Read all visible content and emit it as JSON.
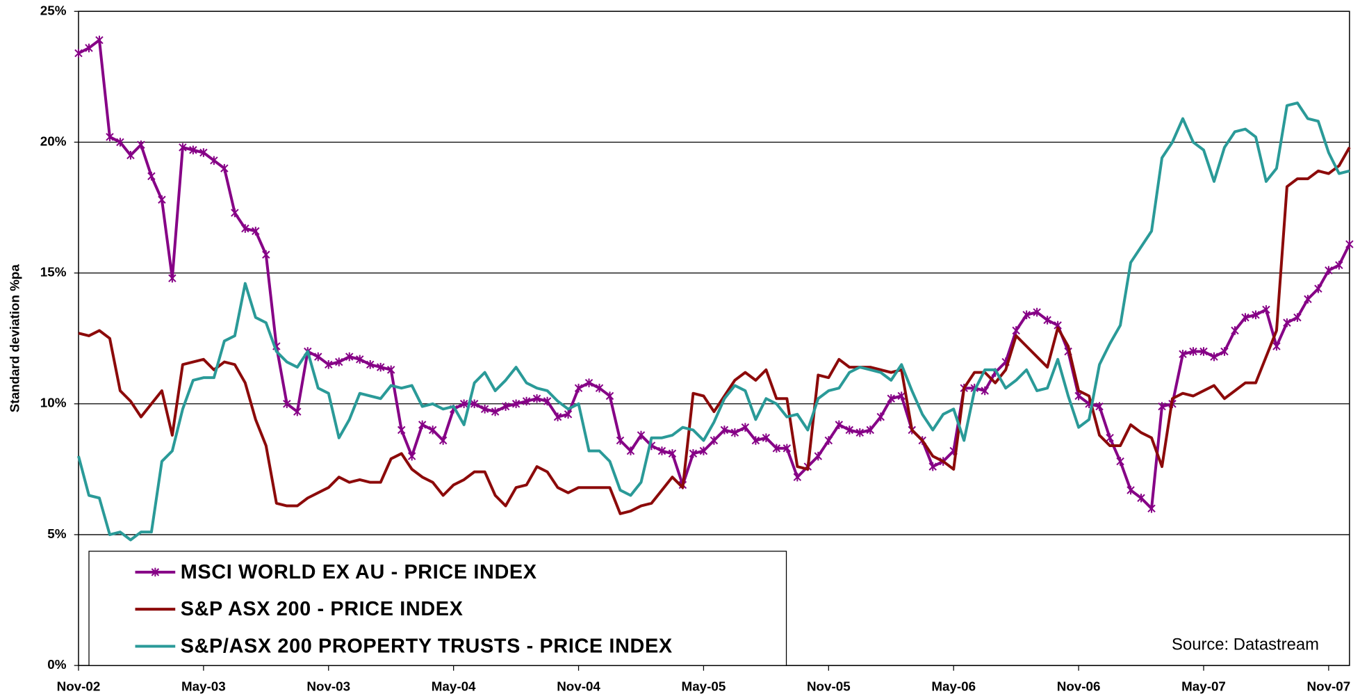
{
  "chart_data": {
    "type": "line",
    "y_label": "Standard deviation %pa",
    "source": "Source: Datastream",
    "ylim": [
      0,
      25
    ],
    "yticks": [
      {
        "value": 0,
        "label": "0%"
      },
      {
        "value": 5,
        "label": "5%"
      },
      {
        "value": 10,
        "label": "10%"
      },
      {
        "value": 15,
        "label": "15%"
      },
      {
        "value": 20,
        "label": "20%"
      },
      {
        "value": 25,
        "label": "25%"
      }
    ],
    "grid": true,
    "legend": "bottom-left",
    "categories": [
      "Nov-02",
      null,
      null,
      null,
      null,
      null,
      null,
      null,
      null,
      null,
      null,
      null,
      "May-03",
      null,
      null,
      null,
      null,
      null,
      null,
      null,
      null,
      null,
      null,
      null,
      "Nov-03",
      null,
      null,
      null,
      null,
      null,
      null,
      null,
      null,
      null,
      null,
      null,
      "May-04",
      null,
      null,
      null,
      null,
      null,
      null,
      null,
      null,
      null,
      null,
      null,
      "Nov-04",
      null,
      null,
      null,
      null,
      null,
      null,
      null,
      null,
      null,
      null,
      null,
      "May-05",
      null,
      null,
      null,
      null,
      null,
      null,
      null,
      null,
      null,
      null,
      null,
      "Nov-05",
      null,
      null,
      null,
      null,
      null,
      null,
      null,
      null,
      null,
      null,
      null,
      "May-06",
      null,
      null,
      null,
      null,
      null,
      null,
      null,
      null,
      null,
      null,
      null,
      "Nov-06",
      null,
      null,
      null,
      null,
      null,
      null,
      null,
      null,
      null,
      null,
      null,
      "May-07",
      null,
      null,
      null,
      null,
      null,
      null,
      null,
      null,
      null,
      null,
      null,
      "Nov-07",
      null,
      null
    ],
    "series": [
      {
        "name": "MSCI WORLD EX AU - PRICE INDEX",
        "color": "#860086",
        "marker": "asterisk",
        "values": [
          23.4,
          23.6,
          23.9,
          20.2,
          20.0,
          19.5,
          19.9,
          18.7,
          17.8,
          14.8,
          19.8,
          19.7,
          19.6,
          19.3,
          19.0,
          17.3,
          16.7,
          16.6,
          15.7,
          12.2,
          10.0,
          9.7,
          12.0,
          11.8,
          11.5,
          11.6,
          11.8,
          11.7,
          11.5,
          11.4,
          11.3,
          9.0,
          8.0,
          9.2,
          9.0,
          8.6,
          9.8,
          10.0,
          10.0,
          9.8,
          9.7,
          9.9,
          10.0,
          10.1,
          10.2,
          10.1,
          9.5,
          9.6,
          10.6,
          10.8,
          10.6,
          10.3,
          8.6,
          8.2,
          8.8,
          8.4,
          8.2,
          8.1,
          6.9,
          8.1,
          8.2,
          8.6,
          9.0,
          8.9,
          9.1,
          8.6,
          8.7,
          8.3,
          8.3,
          7.2,
          7.6,
          8.0,
          8.6,
          9.2,
          9.0,
          8.9,
          9.0,
          9.5,
          10.2,
          10.3,
          9.0,
          8.6,
          7.6,
          7.8,
          8.2,
          10.6,
          10.6,
          10.5,
          11.2,
          11.6,
          12.8,
          13.4,
          13.5,
          13.2,
          13.0,
          12.0,
          10.3,
          10.0,
          9.9,
          8.7,
          7.8,
          6.7,
          6.4,
          6.0,
          9.9,
          10.0,
          11.9,
          12.0,
          12.0,
          11.8,
          12.0,
          12.8,
          13.3,
          13.4,
          13.6,
          12.2,
          13.1,
          13.3,
          14.0,
          14.4,
          15.1,
          15.3,
          16.1
        ]
      },
      {
        "name": "S&P ASX 200 - PRICE INDEX",
        "color": "#8c0a0a",
        "values": [
          12.7,
          12.6,
          12.8,
          12.5,
          10.5,
          10.1,
          9.5,
          10.0,
          10.5,
          8.8,
          11.5,
          11.6,
          11.7,
          11.3,
          11.6,
          11.5,
          10.8,
          9.4,
          8.4,
          6.2,
          6.1,
          6.1,
          6.4,
          6.6,
          6.8,
          7.2,
          7.0,
          7.1,
          7.0,
          7.0,
          7.9,
          8.1,
          7.5,
          7.2,
          7.0,
          6.5,
          6.9,
          7.1,
          7.4,
          7.4,
          6.5,
          6.1,
          6.8,
          6.9,
          7.6,
          7.4,
          6.8,
          6.6,
          6.8,
          6.8,
          6.8,
          6.8,
          5.8,
          5.9,
          6.1,
          6.2,
          6.7,
          7.2,
          6.8,
          10.4,
          10.3,
          9.7,
          10.3,
          10.9,
          11.2,
          10.9,
          11.3,
          10.2,
          10.2,
          7.6,
          7.5,
          11.1,
          11.0,
          11.7,
          11.4,
          11.4,
          11.4,
          11.3,
          11.2,
          11.3,
          9.0,
          8.6,
          8.0,
          7.8,
          7.5,
          10.6,
          11.2,
          11.2,
          10.8,
          11.3,
          12.6,
          12.2,
          11.8,
          11.4,
          12.9,
          12.2,
          10.5,
          10.3,
          8.8,
          8.4,
          8.4,
          9.2,
          8.9,
          8.7,
          7.6,
          10.2,
          10.4,
          10.3,
          10.5,
          10.7,
          10.2,
          10.5,
          10.8,
          10.8,
          11.8,
          12.8,
          18.3,
          18.6,
          18.6,
          18.9,
          18.8,
          19.1,
          19.8
        ]
      },
      {
        "name": "S&P/ASX 200 PROPERTY TRUSTS - PRICE INDEX",
        "color": "#2a9a98",
        "values": [
          8.0,
          6.5,
          6.4,
          5.0,
          5.1,
          4.8,
          5.1,
          5.1,
          7.8,
          8.2,
          9.8,
          10.9,
          11.0,
          11.0,
          12.4,
          12.6,
          14.6,
          13.3,
          13.1,
          12.0,
          11.6,
          11.4,
          12.0,
          10.6,
          10.4,
          8.7,
          9.4,
          10.4,
          10.3,
          10.2,
          10.7,
          10.6,
          10.7,
          9.9,
          10.0,
          9.8,
          9.9,
          9.2,
          10.8,
          11.2,
          10.5,
          10.9,
          11.4,
          10.8,
          10.6,
          10.5,
          10.1,
          9.8,
          10.0,
          8.2,
          8.2,
          7.8,
          6.7,
          6.5,
          7.0,
          8.7,
          8.7,
          8.8,
          9.1,
          9.0,
          8.6,
          9.3,
          10.2,
          10.7,
          10.5,
          9.4,
          10.2,
          10.0,
          9.5,
          9.6,
          9.0,
          10.2,
          10.5,
          10.6,
          11.2,
          11.4,
          11.3,
          11.2,
          10.9,
          11.5,
          10.5,
          9.6,
          9.0,
          9.6,
          9.8,
          8.6,
          10.5,
          11.3,
          11.3,
          10.6,
          10.9,
          11.3,
          10.5,
          10.6,
          11.7,
          10.3,
          9.1,
          9.4,
          11.5,
          12.3,
          13.0,
          15.4,
          16.0,
          16.6,
          19.4,
          20.0,
          20.9,
          20.0,
          19.7,
          18.5,
          19.8,
          20.4,
          20.5,
          20.2,
          18.5,
          19.0,
          21.4,
          21.5,
          20.9,
          20.8,
          19.6,
          18.8,
          18.9
        ]
      }
    ]
  }
}
